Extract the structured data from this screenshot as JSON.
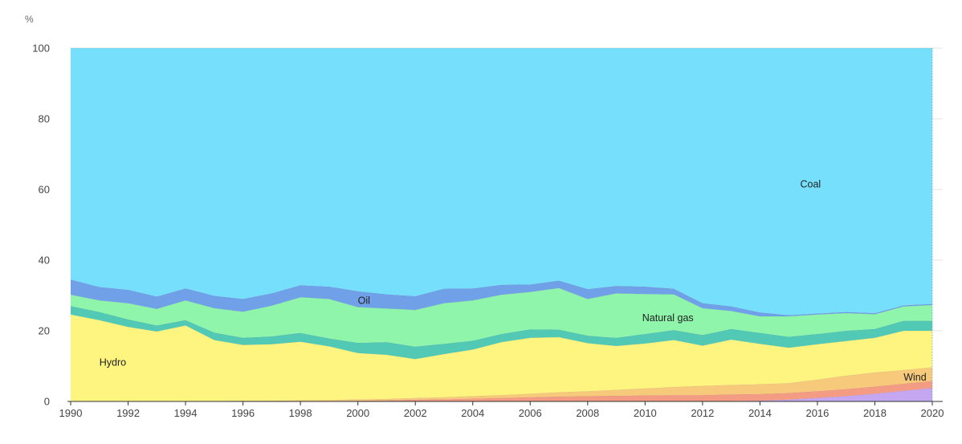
{
  "chart_data": {
    "type": "area",
    "stacked": true,
    "unit_label": "%",
    "x": [
      1990,
      1991,
      1992,
      1993,
      1994,
      1995,
      1996,
      1997,
      1998,
      1999,
      2000,
      2001,
      2002,
      2003,
      2004,
      2005,
      2006,
      2007,
      2008,
      2009,
      2010,
      2011,
      2012,
      2013,
      2014,
      2015,
      2016,
      2017,
      2018,
      2019,
      2020
    ],
    "x_ticks": [
      "1990",
      "1992",
      "1994",
      "1996",
      "1998",
      "2000",
      "2002",
      "2004",
      "2006",
      "2008",
      "2010",
      "2012",
      "2014",
      "2016",
      "2018",
      "2020"
    ],
    "y_ticks": [
      "0",
      "20",
      "40",
      "60",
      "80",
      "100"
    ],
    "ylim": [
      0,
      100
    ],
    "grid": true,
    "series": [
      {
        "name": "",
        "color": "#c4a7f0",
        "values": [
          0,
          0,
          0,
          0,
          0,
          0,
          0,
          0,
          0,
          0,
          0,
          0,
          0,
          0,
          0,
          0,
          0,
          0,
          0,
          0,
          0,
          0,
          0,
          0.1,
          0.2,
          0.5,
          1.0,
          1.5,
          2.2,
          3.0,
          3.8
        ]
      },
      {
        "name": "",
        "color": "#f39b83",
        "values": [
          0,
          0,
          0,
          0,
          0,
          0,
          0,
          0,
          0,
          0.1,
          0.2,
          0.3,
          0.5,
          0.6,
          0.8,
          1.0,
          1.2,
          1.4,
          1.5,
          1.6,
          1.7,
          1.8,
          1.8,
          1.9,
          1.9,
          1.9,
          1.9,
          2.0,
          2.0,
          2.0,
          2.0
        ]
      },
      {
        "name": "Wind",
        "color": "#f7c97a",
        "values": [
          0,
          0,
          0,
          0,
          0,
          0.1,
          0.2,
          0.2,
          0.3,
          0.3,
          0.4,
          0.4,
          0.5,
          0.6,
          0.7,
          0.8,
          1.0,
          1.2,
          1.4,
          1.7,
          2.0,
          2.3,
          2.6,
          2.7,
          2.8,
          2.8,
          3.3,
          3.8,
          4.0,
          3.9,
          3.9
        ]
      },
      {
        "name": "Hydro",
        "color": "#fdf57f",
        "values": [
          24.6,
          23.0,
          21.1,
          19.8,
          21.5,
          17.3,
          15.8,
          16.0,
          16.6,
          15.2,
          13.1,
          12.5,
          11.0,
          12.2,
          13.2,
          15.0,
          15.8,
          15.6,
          13.6,
          12.4,
          12.7,
          13.3,
          11.4,
          12.8,
          11.4,
          10.0,
          10.0,
          9.8,
          9.8,
          11.1,
          10.3
        ]
      },
      {
        "name": "",
        "color": "#52c9b4",
        "values": [
          2.4,
          2.3,
          2.1,
          1.7,
          1.5,
          2.1,
          2.0,
          2.2,
          2.5,
          2.2,
          2.9,
          3.6,
          3.5,
          2.9,
          2.5,
          2.3,
          2.4,
          2.1,
          2.1,
          2.3,
          2.7,
          2.8,
          3.0,
          3.0,
          3.1,
          3.1,
          2.9,
          2.9,
          2.5,
          2.8,
          2.8
        ]
      },
      {
        "name": "Natural gas",
        "color": "#8ff5aa",
        "values": [
          3.2,
          3.3,
          4.6,
          4.7,
          5.6,
          6.9,
          7.4,
          8.7,
          10.1,
          11.2,
          10.1,
          9.5,
          10.4,
          11.5,
          11.4,
          11.1,
          10.6,
          11.8,
          10.4,
          12.6,
          11.3,
          10.1,
          7.6,
          5.1,
          4.7,
          5.8,
          5.5,
          5.0,
          4.2,
          4.1,
          4.5
        ]
      },
      {
        "name": "Oil",
        "color": "#6fa0e8",
        "values": [
          4.3,
          3.8,
          3.8,
          3.5,
          3.4,
          3.5,
          3.6,
          3.5,
          3.4,
          3.5,
          4.5,
          4.0,
          3.9,
          4.1,
          3.4,
          2.8,
          2.1,
          2.1,
          2.8,
          2.1,
          2.1,
          1.6,
          1.4,
          1.3,
          1.1,
          0.3,
          0.3,
          0.3,
          0.3,
          0.3,
          0.3
        ]
      },
      {
        "name": "Coal",
        "color": "#76dffb",
        "values": [
          65.5,
          67.6,
          68.4,
          70.3,
          68.0,
          70.1,
          71.0,
          69.4,
          67.1,
          67.5,
          68.8,
          69.7,
          70.2,
          68.1,
          68.0,
          67.0,
          66.9,
          65.8,
          68.2,
          67.3,
          67.5,
          68.1,
          72.2,
          73.1,
          74.8,
          75.6,
          76.1,
          74.7,
          75.0,
          72.8,
          72.4
        ]
      }
    ],
    "labels": [
      {
        "series": "Hydro",
        "text": "Hydro",
        "x": 1991,
        "y": 11
      },
      {
        "series": "Oil",
        "text": "Oil",
        "x": 2000,
        "y": 28.5
      },
      {
        "series": "Natural gas",
        "text": "Natural gas",
        "x": 2009.9,
        "y": 23.6
      },
      {
        "series": "Coal",
        "text": "Coal",
        "x": 2015.4,
        "y": 61.5
      },
      {
        "series": "Wind",
        "text": "Wind",
        "x": 2019,
        "y": 6.8
      }
    ]
  }
}
